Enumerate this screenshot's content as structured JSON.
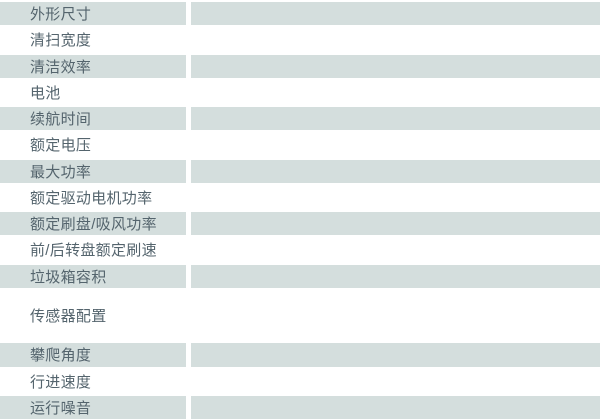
{
  "colors": {
    "row_shade": "#d4dedd",
    "row_plain": "#ffffff",
    "label_text": "#54646d"
  },
  "table": {
    "rows": [
      {
        "label": "外形尺寸",
        "value": "",
        "shade": "gray",
        "tall": false
      },
      {
        "label": "清扫宽度",
        "value": "",
        "shade": "white",
        "tall": false
      },
      {
        "label": "清洁效率",
        "value": "",
        "shade": "gray",
        "tall": false
      },
      {
        "label": "电池",
        "value": "",
        "shade": "white",
        "tall": false
      },
      {
        "label": "续航时间",
        "value": "",
        "shade": "gray",
        "tall": false
      },
      {
        "label": "额定电压",
        "value": "",
        "shade": "white",
        "tall": false
      },
      {
        "label": "最大功率",
        "value": "",
        "shade": "gray",
        "tall": false
      },
      {
        "label": "额定驱动电机功率",
        "value": "",
        "shade": "white",
        "tall": false
      },
      {
        "label": "额定刷盘/吸风功率",
        "value": "",
        "shade": "gray",
        "tall": false
      },
      {
        "label": "前/后转盘额定刷速",
        "value": "",
        "shade": "white",
        "tall": false
      },
      {
        "label": "垃圾箱容积",
        "value": "",
        "shade": "gray",
        "tall": false
      },
      {
        "label": "传感器配置",
        "value": "",
        "shade": "white",
        "tall": true
      },
      {
        "label": "攀爬角度",
        "value": "",
        "shade": "gray",
        "tall": false
      },
      {
        "label": "行进速度",
        "value": "",
        "shade": "white",
        "tall": false
      },
      {
        "label": "运行噪音",
        "value": "",
        "shade": "gray",
        "tall": false
      }
    ]
  }
}
